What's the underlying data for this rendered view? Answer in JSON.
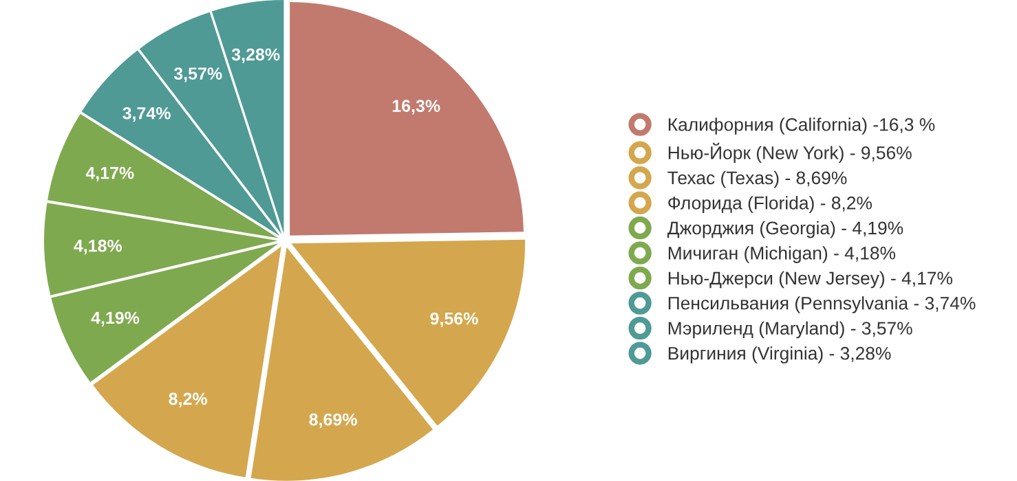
{
  "chart_data": {
    "type": "pie",
    "categories": [
      "Калифорния (California) -16,3 %",
      "Нью-Йорк (New York) - 9,56%",
      "Техас (Texas) - 8,69%",
      "Флорида (Florida) - 8,2%",
      "Джорджия (Georgia) - 4,19%",
      "Мичиган (Michigan) - 4,18%",
      "Нью-Джерси (New Jersey) - 4,17%",
      "Пенсильвания (Pennsylvania - 3,74%",
      "Мэриленд (Maryland) - 3,57%",
      "Виргиния (Virginia) - 3,28%"
    ],
    "values": [
      16.3,
      9.56,
      8.69,
      8.2,
      4.19,
      4.18,
      4.17,
      3.74,
      3.57,
      3.28
    ],
    "value_labels": [
      "16,3%",
      "9,56%",
      "8,69%",
      "8,2%",
      "4,19%",
      "4,18%",
      "4,17%",
      "3,74%",
      "3,57%",
      "3,28%"
    ],
    "colors": [
      "#c27a6e",
      "#d4a74e",
      "#d4a74e",
      "#d4a74e",
      "#7fa94f",
      "#7fa94f",
      "#7fa94f",
      "#4f9a95",
      "#4f9a95",
      "#4f9a95"
    ],
    "legend": "right"
  }
}
